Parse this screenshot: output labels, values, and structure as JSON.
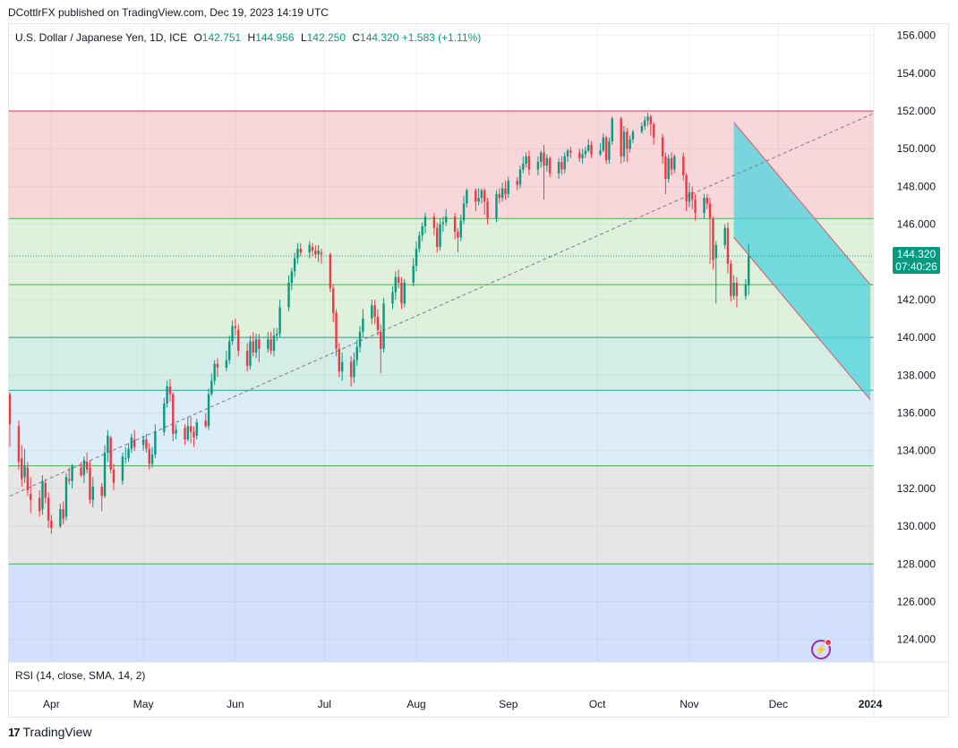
{
  "header": {
    "published_text": "DCottlrFX published on TradingView.com, Dec 19, 2023 14:19 UTC"
  },
  "legend": {
    "symbol": "U.S. Dollar / Japanese Yen, 1D, ICE",
    "o_label": "O",
    "o_value": "142.751",
    "h_label": "H",
    "h_value": "144.956",
    "l_label": "L",
    "l_value": "142.250",
    "c_label": "C",
    "c_value": "144.320",
    "change": "+1.583 (+1.11%)"
  },
  "price_tag": {
    "price": "144.320",
    "countdown": "07:40:26"
  },
  "rsi_label": "RSI (14, close, SMA, 14, 2)",
  "footer": {
    "brand": "TradingView",
    "brand_mark": "17"
  },
  "colors": {
    "up": "#089981",
    "down": "#f23645",
    "zone_red": "#f8d7da",
    "zone_green": "#dff0dc",
    "zone_teal": "#d4ede6",
    "zone_blue_light": "#dcedf8",
    "zone_gray": "#e6e6e6",
    "zone_blue": "#d2dffd",
    "channel_fill": "#4dd3dd"
  },
  "chart_data": {
    "type": "candlestick",
    "symbol": "USDJPY",
    "timeframe": "1D",
    "ylim": [
      122.8,
      156.6
    ],
    "y_ticks": [
      "156.000",
      "154.000",
      "152.000",
      "150.000",
      "148.000",
      "146.000",
      "144.000",
      "142.000",
      "140.000",
      "138.000",
      "136.000",
      "134.000",
      "132.000",
      "130.000",
      "128.000",
      "126.000",
      "124.000"
    ],
    "x_ticks": [
      "Apr",
      "May",
      "Jun",
      "Jul",
      "Aug",
      "Sep",
      "Oct",
      "Nov",
      "Dec",
      "2024"
    ],
    "x_tick_offsets": [
      14,
      45,
      76,
      106,
      137,
      168,
      198,
      229,
      259,
      290
    ],
    "zones": [
      {
        "from": 146.3,
        "to": 152.0,
        "fill": "zone_red",
        "line": "#f23645"
      },
      {
        "from": 142.8,
        "to": 146.3,
        "fill": "zone_green",
        "line": "#4caf50"
      },
      {
        "from": 140.0,
        "to": 142.8,
        "fill": "zone_green",
        "line": "#4caf50"
      },
      {
        "from": 137.2,
        "to": 140.0,
        "fill": "zone_teal",
        "line": "#26a69a"
      },
      {
        "from": 133.2,
        "to": 137.2,
        "fill": "zone_blue_light",
        "line": "#26a69a"
      },
      {
        "from": 128.0,
        "to": 133.2,
        "fill": "zone_gray",
        "line": "#4caf50"
      },
      {
        "from": 122.8,
        "to": 128.0,
        "fill": "zone_blue",
        "line": "#4caf50"
      }
    ],
    "trendline": {
      "from": [
        0,
        131.6
      ],
      "to": [
        293,
        152.0
      ]
    },
    "channel": {
      "upper": [
        [
          244,
          151.4
        ],
        [
          290,
          142.8
        ]
      ],
      "lower": [
        [
          244,
          145.3
        ],
        [
          290,
          136.7
        ]
      ]
    },
    "last_price": 144.32,
    "candles": [
      [
        0,
        137.0,
        135.4,
        137.1,
        134.2
      ],
      [
        3,
        135.3,
        133.4,
        135.6,
        133.0
      ],
      [
        4,
        133.6,
        132.5,
        134.3,
        132.1
      ],
      [
        5,
        132.6,
        133.2,
        134.1,
        132.3
      ],
      [
        6,
        133.1,
        131.9,
        133.4,
        131.6
      ],
      [
        7,
        131.7,
        131.4,
        132.6,
        130.7
      ],
      [
        10,
        131.5,
        130.8,
        131.9,
        130.5
      ],
      [
        11,
        130.9,
        132.4,
        132.7,
        130.6
      ],
      [
        12,
        132.3,
        131.5,
        132.5,
        131.2
      ],
      [
        13,
        131.5,
        130.3,
        131.8,
        129.9
      ],
      [
        14,
        130.3,
        129.9,
        130.6,
        129.6
      ],
      [
        17,
        130.0,
        130.9,
        131.2,
        129.9
      ],
      [
        18,
        130.9,
        130.4,
        131.3,
        130.1
      ],
      [
        19,
        130.5,
        132.6,
        132.8,
        130.3
      ],
      [
        20,
        132.5,
        132.4,
        133.1,
        132.2
      ],
      [
        21,
        132.4,
        133.2,
        133.3,
        132.0
      ],
      [
        24,
        133.1,
        132.7,
        133.4,
        132.6
      ],
      [
        25,
        132.7,
        133.5,
        133.7,
        132.3
      ],
      [
        26,
        133.4,
        133.0,
        133.9,
        132.8
      ],
      [
        27,
        133.1,
        131.4,
        133.5,
        131.2
      ],
      [
        28,
        131.4,
        132.1,
        132.6,
        131.0
      ],
      [
        31,
        132.1,
        131.6,
        132.3,
        130.8
      ],
      [
        32,
        131.6,
        133.9,
        134.3,
        131.5
      ],
      [
        33,
        133.9,
        134.8,
        135.1,
        133.4
      ],
      [
        34,
        134.7,
        133.0,
        134.8,
        132.8
      ],
      [
        35,
        133.0,
        132.3,
        133.3,
        131.9
      ],
      [
        38,
        132.4,
        133.7,
        133.9,
        132.2
      ],
      [
        39,
        133.6,
        133.6,
        134.2,
        133.3
      ],
      [
        40,
        133.6,
        134.1,
        134.4,
        133.4
      ],
      [
        41,
        134.1,
        134.7,
        134.9,
        133.9
      ],
      [
        42,
        134.6,
        134.2,
        135.1,
        134.0
      ],
      [
        45,
        134.3,
        134.6,
        134.8,
        134.0
      ],
      [
        46,
        134.6,
        134.1,
        134.9,
        133.9
      ],
      [
        47,
        134.1,
        133.3,
        134.4,
        133.0
      ],
      [
        48,
        133.3,
        133.8,
        134.2,
        133.1
      ],
      [
        49,
        133.8,
        135.0,
        135.4,
        133.6
      ],
      [
        52,
        135.0,
        136.5,
        136.8,
        134.8
      ],
      [
        53,
        136.5,
        137.4,
        137.7,
        136.3
      ],
      [
        54,
        137.4,
        137.0,
        137.8,
        136.6
      ],
      [
        55,
        137.0,
        134.9,
        137.1,
        134.5
      ],
      [
        56,
        134.9,
        135.1,
        135.4,
        134.6
      ],
      [
        59,
        135.2,
        134.6,
        135.4,
        134.3
      ],
      [
        60,
        134.6,
        135.3,
        135.8,
        134.5
      ],
      [
        61,
        135.3,
        135.0,
        135.8,
        134.4
      ],
      [
        62,
        135.0,
        134.7,
        135.3,
        134.2
      ],
      [
        63,
        134.8,
        135.5,
        135.7,
        134.6
      ],
      [
        66,
        135.6,
        135.3,
        136.0,
        135.2
      ],
      [
        67,
        135.3,
        137.0,
        137.3,
        135.1
      ],
      [
        68,
        137.0,
        137.7,
        138.1,
        136.9
      ],
      [
        69,
        137.7,
        138.6,
        138.8,
        137.5
      ],
      [
        70,
        138.6,
        138.4,
        138.9,
        137.9
      ],
      [
        73,
        138.4,
        138.8,
        139.3,
        138.2
      ],
      [
        74,
        138.8,
        139.8,
        140.1,
        138.6
      ],
      [
        75,
        139.8,
        140.6,
        140.9,
        139.6
      ],
      [
        76,
        140.6,
        140.5,
        141.0,
        140.1
      ],
      [
        77,
        140.4,
        139.3,
        140.7,
        139.0
      ],
      [
        80,
        139.3,
        138.5,
        139.7,
        138.2
      ],
      [
        81,
        138.5,
        139.8,
        140.1,
        138.3
      ],
      [
        82,
        139.8,
        139.2,
        140.3,
        139.0
      ],
      [
        83,
        139.2,
        139.9,
        140.2,
        138.9
      ],
      [
        84,
        139.9,
        139.4,
        140.2,
        138.7
      ],
      [
        87,
        139.4,
        139.9,
        140.3,
        139.2
      ],
      [
        88,
        139.9,
        139.3,
        140.3,
        139.1
      ],
      [
        89,
        139.3,
        140.1,
        140.5,
        139.0
      ],
      [
        90,
        140.1,
        140.2,
        140.5,
        139.8
      ],
      [
        91,
        140.2,
        141.6,
        142.0,
        140.0
      ],
      [
        94,
        141.6,
        142.9,
        143.3,
        141.4
      ],
      [
        95,
        142.9,
        143.5,
        143.7,
        142.5
      ],
      [
        96,
        143.5,
        144.2,
        144.5,
        143.2
      ],
      [
        97,
        144.2,
        144.7,
        145.0,
        143.9
      ],
      [
        98,
        144.7,
        144.5,
        145.0,
        144.3
      ],
      [
        101,
        144.5,
        144.9,
        145.1,
        144.2
      ],
      [
        102,
        144.8,
        144.6,
        145.0,
        144.3
      ],
      [
        103,
        144.6,
        144.4,
        144.9,
        144.2
      ],
      [
        104,
        144.4,
        144.6,
        144.9,
        144.0
      ],
      [
        105,
        144.5,
        144.4,
        144.7,
        143.9
      ],
      [
        108,
        144.4,
        142.6,
        144.5,
        142.4
      ],
      [
        109,
        142.6,
        141.3,
        142.8,
        140.8
      ],
      [
        110,
        141.3,
        139.4,
        141.5,
        139.0
      ],
      [
        111,
        139.4,
        138.2,
        139.7,
        137.9
      ],
      [
        112,
        138.2,
        138.7,
        139.2,
        137.7
      ],
      [
        115,
        138.7,
        137.9,
        139.0,
        137.4
      ],
      [
        116,
        137.9,
        138.8,
        139.2,
        137.6
      ],
      [
        117,
        138.8,
        139.5,
        139.9,
        138.5
      ],
      [
        118,
        139.5,
        140.3,
        140.6,
        139.2
      ],
      [
        119,
        140.3,
        141.0,
        141.5,
        140.0
      ],
      [
        122,
        141.0,
        141.7,
        142.0,
        140.7
      ],
      [
        123,
        141.7,
        141.1,
        142.0,
        140.7
      ],
      [
        124,
        141.1,
        140.4,
        141.5,
        140.1
      ],
      [
        125,
        140.3,
        139.4,
        140.7,
        138.1
      ],
      [
        126,
        139.4,
        141.8,
        142.1,
        139.2
      ],
      [
        129,
        141.8,
        142.4,
        142.7,
        141.5
      ],
      [
        130,
        142.4,
        143.2,
        143.5,
        142.0
      ],
      [
        131,
        143.2,
        142.9,
        143.6,
        142.6
      ],
      [
        132,
        142.9,
        141.8,
        143.2,
        141.5
      ],
      [
        133,
        141.8,
        142.9,
        143.1,
        141.6
      ],
      [
        136,
        142.9,
        143.8,
        144.2,
        142.7
      ],
      [
        137,
        143.8,
        144.7,
        145.1,
        143.5
      ],
      [
        138,
        144.7,
        145.4,
        145.6,
        144.5
      ],
      [
        139,
        145.4,
        145.9,
        146.1,
        145.1
      ],
      [
        140,
        145.9,
        146.4,
        146.6,
        145.5
      ],
      [
        143,
        146.4,
        145.8,
        146.6,
        145.4
      ],
      [
        144,
        145.8,
        144.8,
        146.1,
        144.5
      ],
      [
        145,
        144.8,
        146.0,
        146.3,
        144.6
      ],
      [
        146,
        146.0,
        146.1,
        146.4,
        145.6
      ],
      [
        147,
        146.1,
        146.4,
        146.8,
        145.9
      ],
      [
        150,
        146.4,
        145.6,
        146.6,
        145.2
      ],
      [
        151,
        145.6,
        145.3,
        145.8,
        144.5
      ],
      [
        152,
        145.3,
        146.2,
        146.5,
        145.1
      ],
      [
        153,
        146.2,
        147.1,
        147.5,
        146.0
      ],
      [
        154,
        147.1,
        147.8,
        147.9,
        146.9
      ],
      [
        157,
        147.8,
        147.2,
        147.9,
        146.7
      ],
      [
        158,
        147.2,
        147.4,
        147.9,
        147.0
      ],
      [
        159,
        147.4,
        147.8,
        147.9,
        147.1
      ],
      [
        160,
        147.8,
        147.2,
        147.9,
        146.5
      ],
      [
        161,
        147.2,
        146.3,
        147.4,
        146.0
      ],
      [
        164,
        146.3,
        147.6,
        147.8,
        146.1
      ],
      [
        165,
        147.6,
        147.4,
        147.9,
        147.1
      ],
      [
        166,
        147.4,
        147.9,
        148.2,
        147.2
      ],
      [
        167,
        147.9,
        147.6,
        148.3,
        147.3
      ],
      [
        168,
        147.6,
        148.3,
        148.5,
        147.4
      ],
      [
        171,
        148.3,
        148.1,
        148.5,
        147.8
      ],
      [
        172,
        148.1,
        148.9,
        149.1,
        147.9
      ],
      [
        173,
        148.9,
        149.2,
        149.6,
        148.7
      ],
      [
        174,
        149.2,
        149.6,
        149.8,
        149.0
      ],
      [
        175,
        149.6,
        148.9,
        149.9,
        148.6
      ],
      [
        178,
        148.9,
        149.3,
        149.6,
        148.6
      ],
      [
        179,
        149.3,
        149.8,
        149.9,
        149.0
      ],
      [
        180,
        149.8,
        149.1,
        150.2,
        147.3
      ],
      [
        181,
        149.1,
        149.5,
        149.7,
        148.8
      ],
      [
        182,
        149.5,
        148.7,
        149.6,
        148.5
      ],
      [
        185,
        148.7,
        149.3,
        149.5,
        148.4
      ],
      [
        186,
        149.3,
        148.9,
        149.6,
        148.6
      ],
      [
        187,
        148.9,
        149.6,
        149.8,
        148.7
      ],
      [
        188,
        149.6,
        149.9,
        150.0,
        149.3
      ],
      [
        189,
        149.9,
        149.8,
        150.1,
        149.5
      ],
      [
        192,
        149.8,
        149.5,
        150.0,
        149.3
      ],
      [
        193,
        149.5,
        149.7,
        150.0,
        149.2
      ],
      [
        194,
        149.7,
        149.9,
        150.1,
        149.5
      ],
      [
        195,
        149.9,
        150.2,
        150.5,
        149.8
      ],
      [
        196,
        150.2,
        149.7,
        150.4,
        149.5
      ],
      [
        199,
        149.7,
        149.9,
        150.3,
        149.6
      ],
      [
        200,
        149.9,
        150.6,
        150.8,
        149.8
      ],
      [
        201,
        150.6,
        149.4,
        150.7,
        149.2
      ],
      [
        202,
        149.4,
        150.4,
        150.6,
        149.2
      ],
      [
        203,
        150.4,
        151.6,
        151.7,
        150.2
      ],
      [
        206,
        151.6,
        149.6,
        151.7,
        149.2
      ],
      [
        207,
        149.6,
        150.9,
        151.2,
        149.3
      ],
      [
        208,
        150.9,
        150.0,
        151.1,
        149.3
      ],
      [
        209,
        150.0,
        150.5,
        150.7,
        149.8
      ],
      [
        210,
        150.5,
        150.9,
        151.0,
        150.3
      ],
      [
        213,
        150.9,
        151.2,
        151.4,
        150.8
      ],
      [
        214,
        151.2,
        151.5,
        151.7,
        151.0
      ],
      [
        215,
        151.5,
        151.7,
        151.9,
        151.2
      ],
      [
        216,
        151.7,
        151.3,
        151.8,
        150.7
      ],
      [
        217,
        151.3,
        150.6,
        151.4,
        150.2
      ],
      [
        220,
        150.6,
        149.6,
        150.8,
        149.2
      ],
      [
        221,
        149.6,
        148.4,
        149.8,
        147.6
      ],
      [
        222,
        148.4,
        149.5,
        149.7,
        148.2
      ],
      [
        223,
        149.5,
        148.9,
        149.8,
        148.6
      ],
      [
        224,
        148.9,
        149.6,
        149.7,
        148.7
      ],
      [
        227,
        149.6,
        148.6,
        149.8,
        148.3
      ],
      [
        228,
        148.6,
        147.2,
        148.7,
        146.7
      ],
      [
        229,
        147.2,
        147.7,
        148.2,
        146.9
      ],
      [
        230,
        147.7,
        147.3,
        148.0,
        146.8
      ],
      [
        231,
        147.3,
        146.6,
        147.6,
        146.2
      ],
      [
        234,
        146.6,
        147.4,
        147.6,
        146.3
      ],
      [
        235,
        147.4,
        147.1,
        147.6,
        146.8
      ],
      [
        236,
        147.1,
        146.3,
        147.4,
        143.9
      ],
      [
        237,
        146.3,
        144.1,
        146.4,
        143.6
      ],
      [
        238,
        144.2,
        144.9,
        145.1,
        141.8
      ],
      [
        241,
        144.9,
        145.8,
        146.0,
        144.7
      ],
      [
        242,
        145.8,
        143.9,
        146.1,
        143.4
      ],
      [
        243,
        143.9,
        142.2,
        144.1,
        141.9
      ],
      [
        244,
        142.2,
        142.9,
        143.3,
        142.0
      ],
      [
        245,
        142.9,
        142.2,
        143.2,
        141.6
      ],
      [
        248,
        142.2,
        142.8,
        143.1,
        142.0
      ],
      [
        249,
        142.751,
        144.32,
        144.956,
        142.25
      ]
    ]
  }
}
